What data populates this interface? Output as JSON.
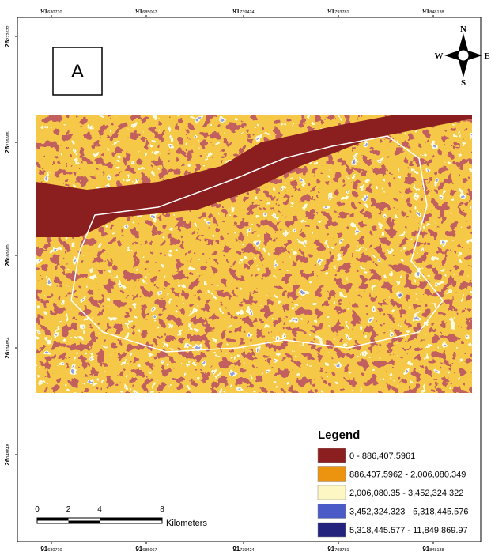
{
  "panel_label": "A",
  "top_labels": [
    {
      "deg": "91",
      "dec": "630710"
    },
    {
      "deg": "91",
      "dec": "685067"
    },
    {
      "deg": "91",
      "dec": "739424"
    },
    {
      "deg": "91",
      "dec": "793781"
    },
    {
      "deg": "91",
      "dec": "848138"
    }
  ],
  "bottom_labels": [
    {
      "deg": "91",
      "dec": "630710"
    },
    {
      "deg": "91",
      "dec": "685067"
    },
    {
      "deg": "91",
      "dec": "739424"
    },
    {
      "deg": "91",
      "dec": "793781"
    },
    {
      "deg": "91",
      "dec": "848138"
    }
  ],
  "left_labels": [
    {
      "deg": "26",
      "dec": "272672"
    },
    {
      "deg": "26",
      "dec": "216666"
    },
    {
      "deg": "26",
      "dec": "160660"
    },
    {
      "deg": "26",
      "dec": "104654"
    },
    {
      "deg": "26",
      "dec": "048648"
    }
  ],
  "compass": {
    "n": "N",
    "s": "S",
    "e": "E",
    "w": "W"
  },
  "legend": {
    "title": "Legend",
    "items": [
      {
        "label": "0 - 886,407.5961",
        "color": "#8b1e1e"
      },
      {
        "label": "886,407.5962 - 2,006,080.349",
        "color": "#ec9410"
      },
      {
        "label": "2,006,080.35 - 3,452,324.322",
        "color": "#fdf7c3"
      },
      {
        "label": "3,452,324.323 - 5,318,445.576",
        "color": "#4a5ac6"
      },
      {
        "label": "5,318,445.577 - 11,849,869.97",
        "color": "#23237e"
      }
    ]
  },
  "scale_bar": {
    "ticks": [
      0,
      2,
      4,
      8
    ],
    "unit": "Kilometers"
  }
}
